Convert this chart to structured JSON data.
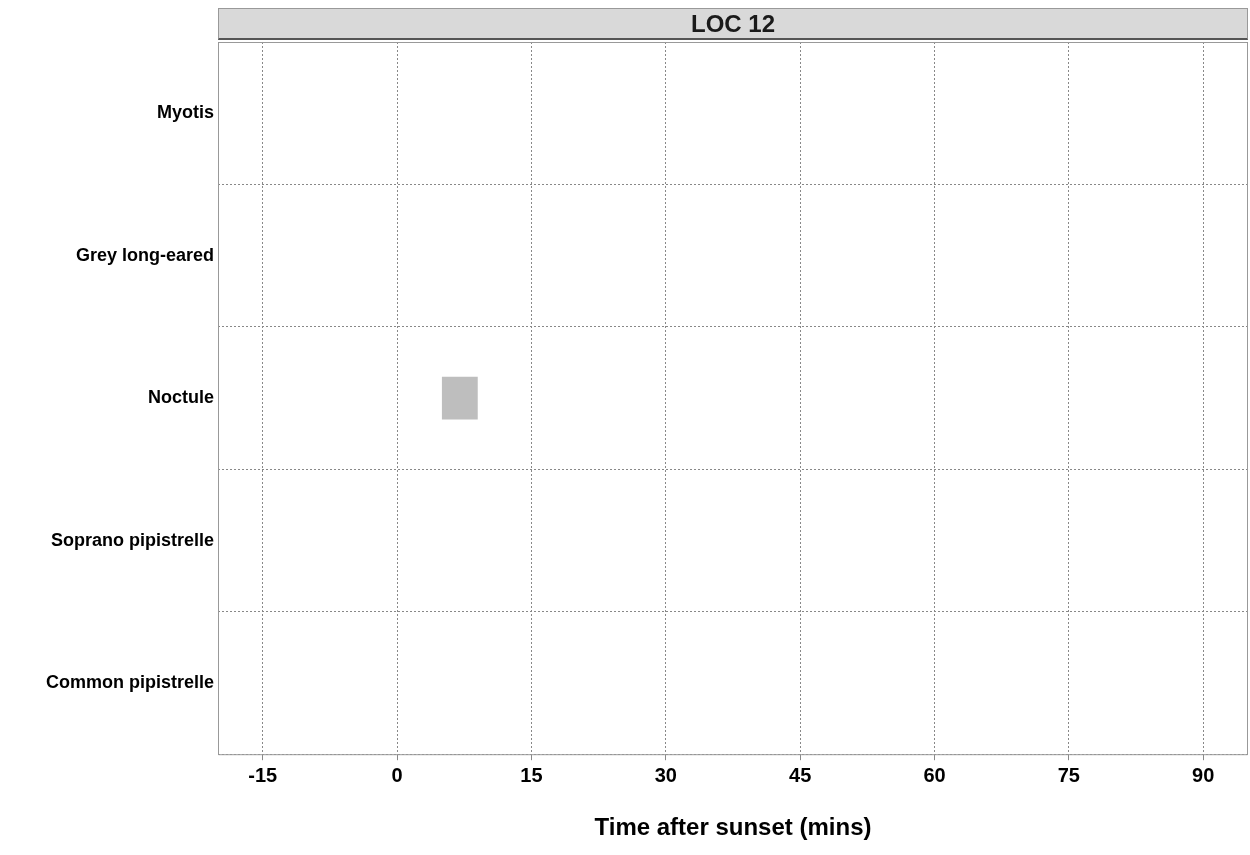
{
  "chart_data": {
    "type": "bar",
    "orientation": "horizontal",
    "title": "LOC 12",
    "xlabel": "Time after sunset (mins)",
    "categories": [
      "Myotis",
      "Grey long-eared",
      "Noctule",
      "Soprano pipistrelle",
      "Common pipistrelle"
    ],
    "values": [
      null,
      null,
      4,
      null,
      null
    ],
    "base": [
      null,
      null,
      5,
      null,
      null
    ],
    "color": "#bebebe",
    "xlim": [
      -20,
      95
    ],
    "xticks": [
      -15,
      0,
      15,
      30,
      45,
      60,
      75,
      90
    ],
    "grid": true,
    "legend": false
  }
}
